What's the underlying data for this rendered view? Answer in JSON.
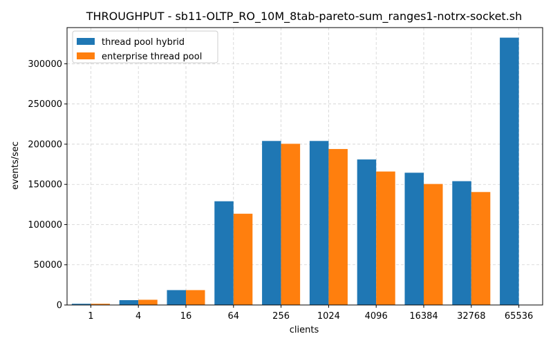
{
  "chart_data": {
    "type": "bar",
    "title": "THROUGHPUT - sb11-OLTP_RO_10M_8tab-pareto-sum_ranges1-notrx-socket.sh",
    "xlabel": "clients",
    "ylabel": "events/sec",
    "categories": [
      "1",
      "4",
      "16",
      "64",
      "256",
      "1024",
      "4096",
      "16384",
      "32768",
      "65536"
    ],
    "ylim": [
      0,
      345000
    ],
    "yticks": [
      0,
      50000,
      100000,
      150000,
      200000,
      250000,
      300000
    ],
    "ytick_labels": [
      "0",
      "50000",
      "100000",
      "150000",
      "200000",
      "250000",
      "300000"
    ],
    "grid": true,
    "legend_position": "top-left",
    "series": [
      {
        "name": "thread pool hybrid",
        "color": "#1f77b4",
        "values": [
          1500,
          6000,
          18500,
          129000,
          204000,
          204000,
          181000,
          164500,
          154000,
          332500
        ]
      },
      {
        "name": "enterprise thread pool",
        "color": "#ff7f0e",
        "values": [
          1500,
          6500,
          18500,
          113500,
          200500,
          194000,
          166000,
          150500,
          140500,
          null
        ]
      }
    ]
  }
}
